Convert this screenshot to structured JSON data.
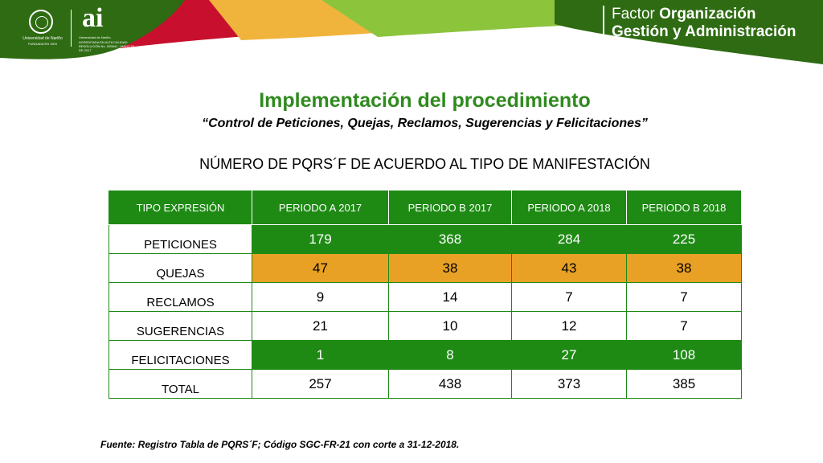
{
  "header": {
    "title_prefix": "Factor",
    "title_bold": "Organización",
    "title_line2": "Gestión y Administración",
    "logo_university_name": "Universidad de Nariño",
    "logo_university_founded": "FUNDADA EN 1904",
    "logo_ai_mark": "ai",
    "logo_ai_line1": "Universidad de Nariño",
    "logo_ai_line2": "ACREDITADA EN ALTA CALIDAD RESOLUCIÓN No. 005641 · MAYO 23 DE 2017"
  },
  "main_title": "Implementación del procedimiento",
  "subtitle": "“Control de Peticiones, Quejas, Reclamos,  Sugerencias y Felicitaciones”",
  "section_title": "NÚMERO DE PQRS´F DE ACUERDO AL TIPO DE MANIFESTACIÓN",
  "table": {
    "headers": [
      "TIPO EXPRESIÓN",
      "PERIODO A 2017",
      "PERIODO B 2017",
      "PERIODO A 2018",
      "PERIODO B 2018"
    ],
    "rows": [
      {
        "label": "PETICIONES",
        "values": [
          "179",
          "368",
          "284",
          "225"
        ]
      },
      {
        "label": "QUEJAS",
        "values": [
          "47",
          "38",
          "43",
          "38"
        ]
      },
      {
        "label": "RECLAMOS",
        "values": [
          "9",
          "14",
          "7",
          "7"
        ]
      },
      {
        "label": "SUGERENCIAS",
        "values": [
          "21",
          "10",
          "12",
          "7"
        ]
      },
      {
        "label": "FELICITACIONES",
        "values": [
          "1",
          "8",
          "27",
          "108"
        ]
      },
      {
        "label": "TOTAL",
        "values": [
          "257",
          "438",
          "373",
          "385"
        ]
      }
    ]
  },
  "footer": "Fuente: Registro Tabla de PQRS´F; Código SGC-FR-21 con corte a 31-12-2018.",
  "colors": {
    "brand_green": "#1e8a14",
    "title_green": "#2f8a1e",
    "accent_orange": "#e8a124",
    "banner_dark_green": "#2e6b12",
    "banner_light_green": "#8cc43c",
    "banner_red": "#c8102e",
    "banner_yellow": "#f0b43c"
  }
}
